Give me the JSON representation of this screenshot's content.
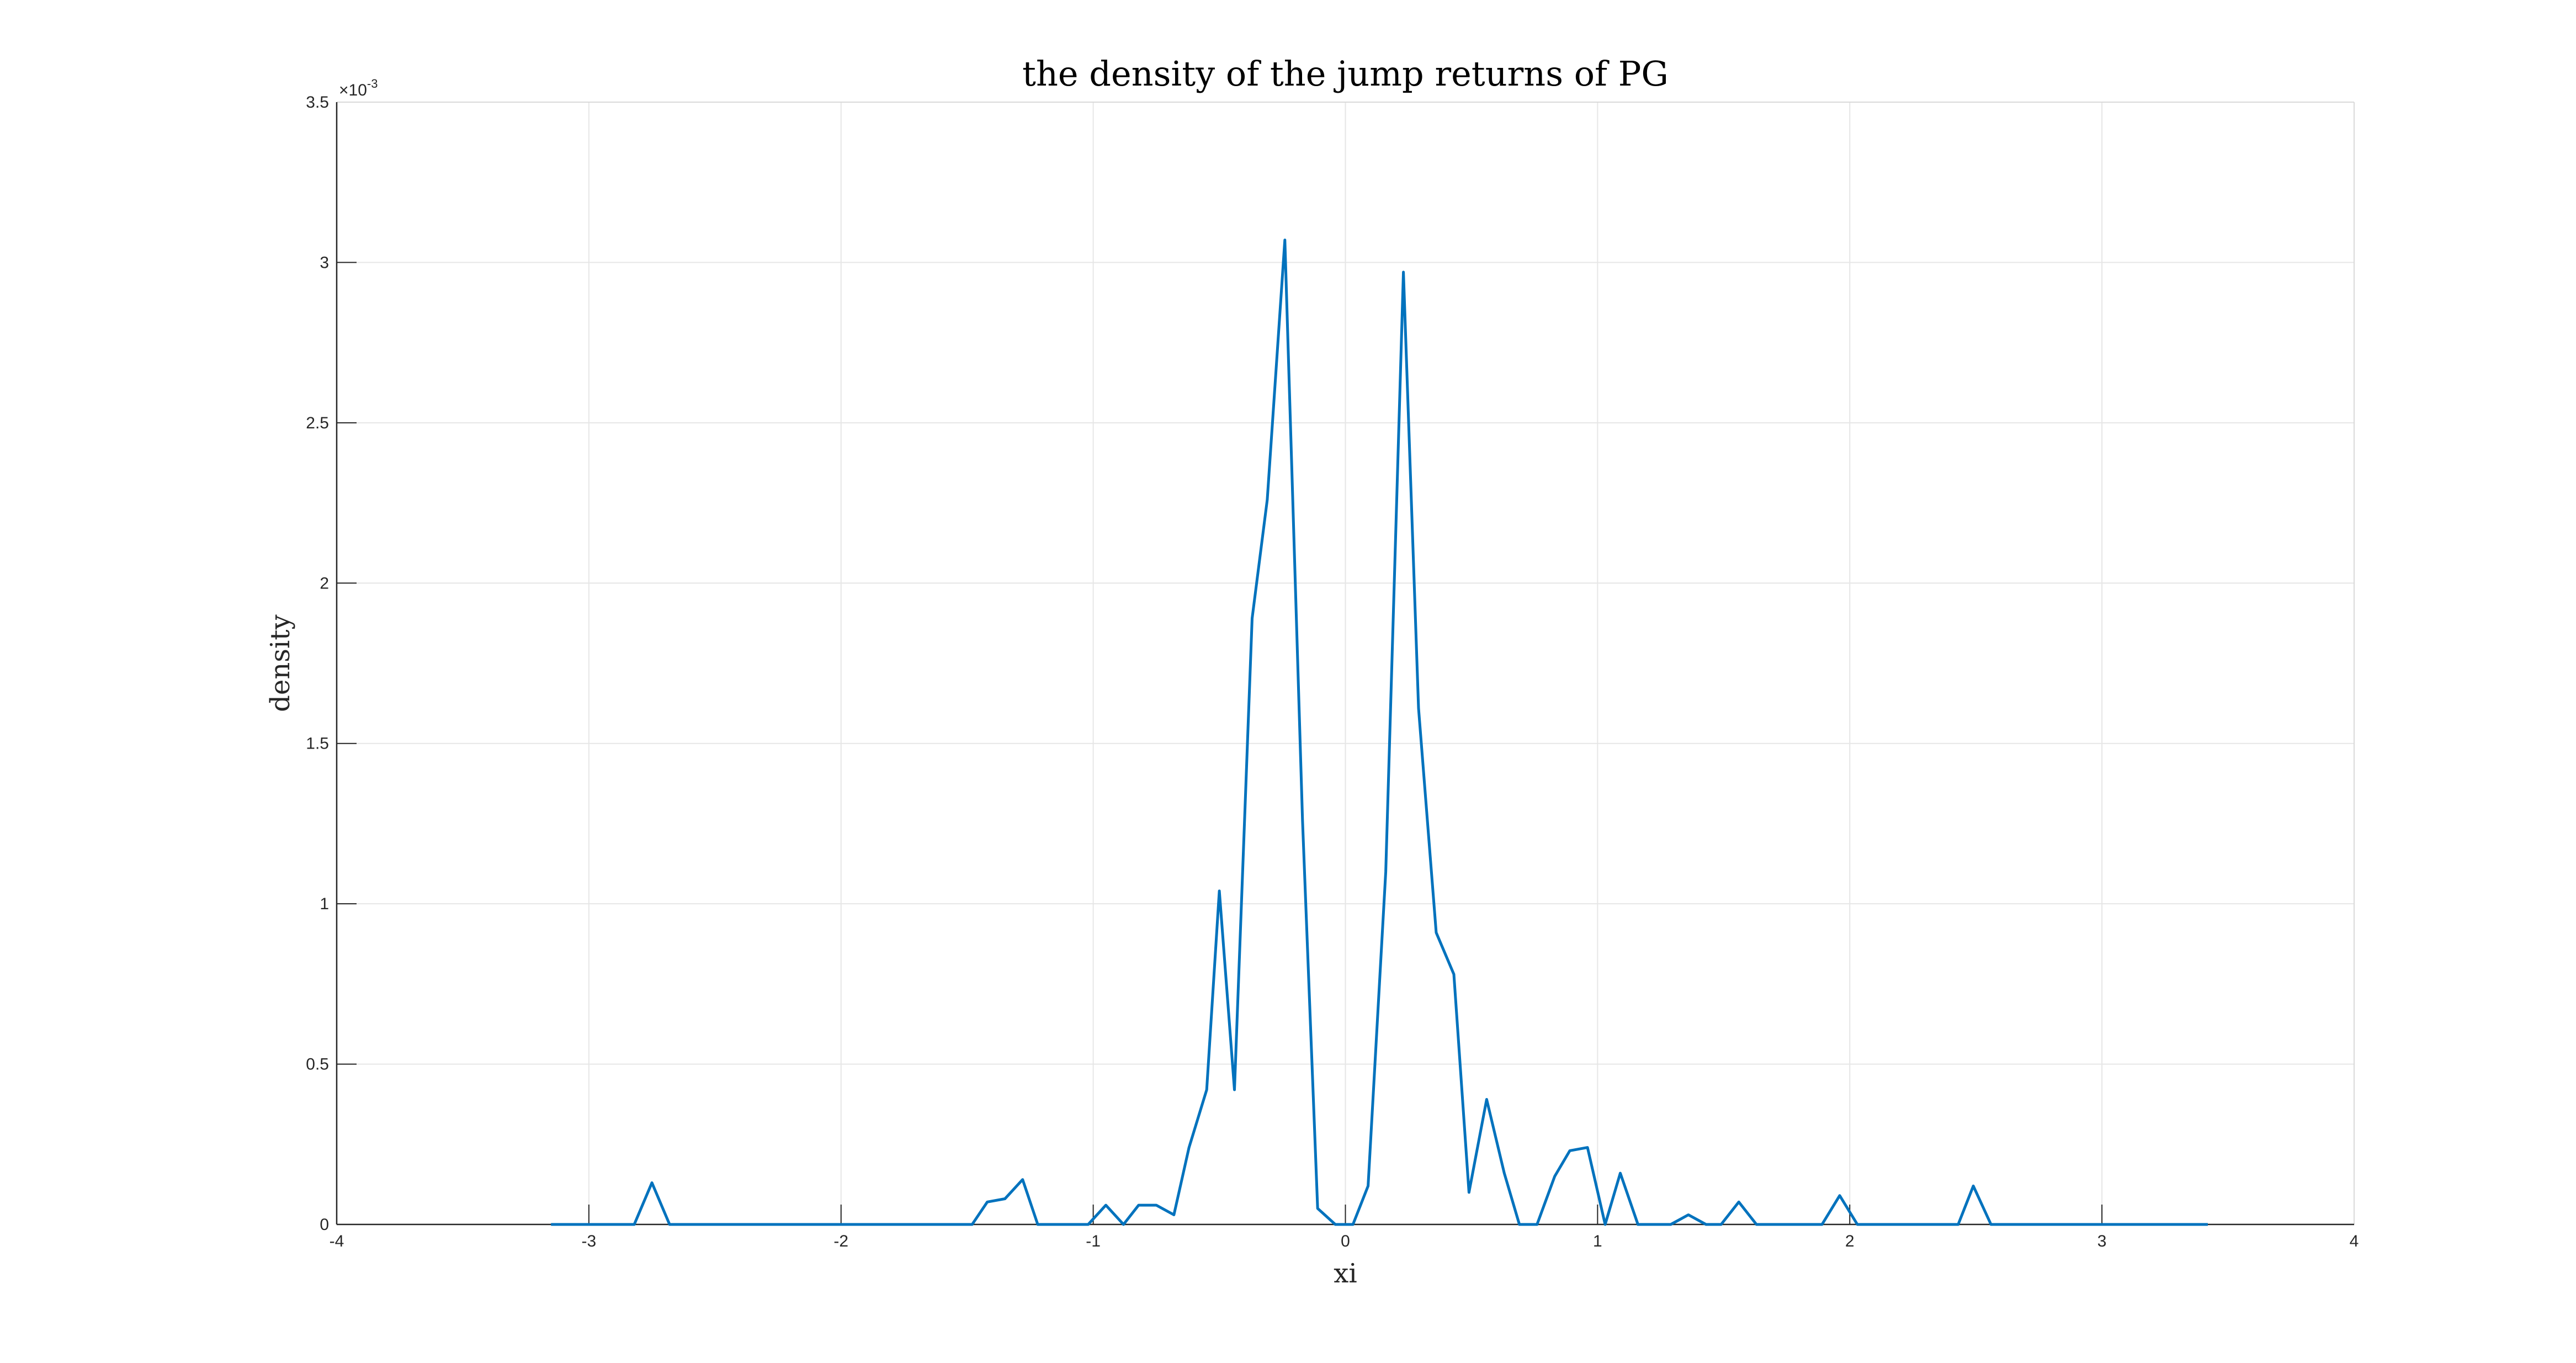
{
  "chart_data": {
    "type": "line",
    "title": "the density of the jump returns of PG",
    "xlabel": "xi",
    "ylabel": "density",
    "xlim": [
      -4,
      4
    ],
    "ylim": [
      0,
      3.5
    ],
    "xticks": [
      "-4",
      "-3",
      "-2",
      "-1",
      "0",
      "1",
      "2",
      "3",
      "4"
    ],
    "yticks": [
      "0",
      "0.5",
      "1",
      "1.5",
      "2",
      "2.5",
      "3",
      "3.5"
    ],
    "y_exponent": {
      "base": "×10",
      "power": "-3"
    },
    "grid": true,
    "line_color": "#0072BD",
    "series": [
      {
        "x": [
          -3.15,
          -3.08,
          -3.02,
          -2.95,
          -2.88,
          -2.82,
          -2.75,
          -2.68,
          -2.62,
          -2.55,
          -2.48,
          -2.42,
          -2.35,
          -2.28,
          -2.22,
          -2.15,
          -2.08,
          -2.02,
          -1.95,
          -1.88,
          -1.82,
          -1.75,
          -1.68,
          -1.62,
          -1.55,
          -1.48,
          -1.42,
          -1.35,
          -1.28,
          -1.22,
          -1.15,
          -1.08,
          -1.02,
          -0.95,
          -0.88,
          -0.82,
          -0.75,
          -0.68,
          -0.62,
          -0.55,
          -0.5,
          -0.44,
          -0.37,
          -0.31,
          -0.24,
          -0.17,
          -0.11,
          -0.04,
          0.03,
          0.09,
          0.16,
          0.23,
          0.29,
          0.36,
          0.43,
          0.49,
          0.56,
          0.63,
          0.69,
          0.76,
          0.83,
          0.89,
          0.96,
          1.03,
          1.09,
          1.16,
          1.23,
          1.29,
          1.36,
          1.43,
          1.49,
          1.56,
          1.63,
          1.69,
          1.76,
          1.83,
          1.89,
          1.96,
          2.03,
          2.09,
          2.16,
          2.23,
          2.29,
          2.36,
          2.43,
          2.49,
          2.56,
          2.63,
          2.69,
          2.76,
          2.83,
          2.89,
          2.96,
          3.03,
          3.09,
          3.16,
          3.23,
          3.29,
          3.36,
          3.42
        ],
        "y": [
          0,
          0,
          0,
          0,
          0,
          0,
          0.00013,
          0,
          0,
          0,
          0,
          0,
          0,
          0,
          0,
          0,
          0,
          0,
          0,
          0,
          0,
          0,
          0,
          0,
          0,
          0,
          7e-05,
          8e-05,
          0.00014,
          0,
          0,
          0,
          0,
          6e-05,
          0,
          6e-05,
          6e-05,
          3e-05,
          0.00024,
          0.00042,
          0.00104,
          0.00042,
          0.00189,
          0.00226,
          0.00307,
          0.00126,
          5e-05,
          0,
          0,
          0.00012,
          0.0011,
          0.00297,
          0.00161,
          0.00091,
          0.00078,
          0.0001,
          0.00039,
          0.00016,
          0,
          0,
          0.00015,
          0.00023,
          0.00024,
          0,
          0.00016,
          0,
          0,
          0,
          3e-05,
          0,
          0,
          7e-05,
          0,
          0,
          0,
          0,
          0,
          9e-05,
          0,
          0,
          0,
          0,
          0,
          0,
          0,
          0.00012,
          0,
          0,
          0,
          0,
          0,
          0,
          0,
          0,
          0,
          0,
          0,
          0,
          0,
          0
        ]
      }
    ]
  }
}
